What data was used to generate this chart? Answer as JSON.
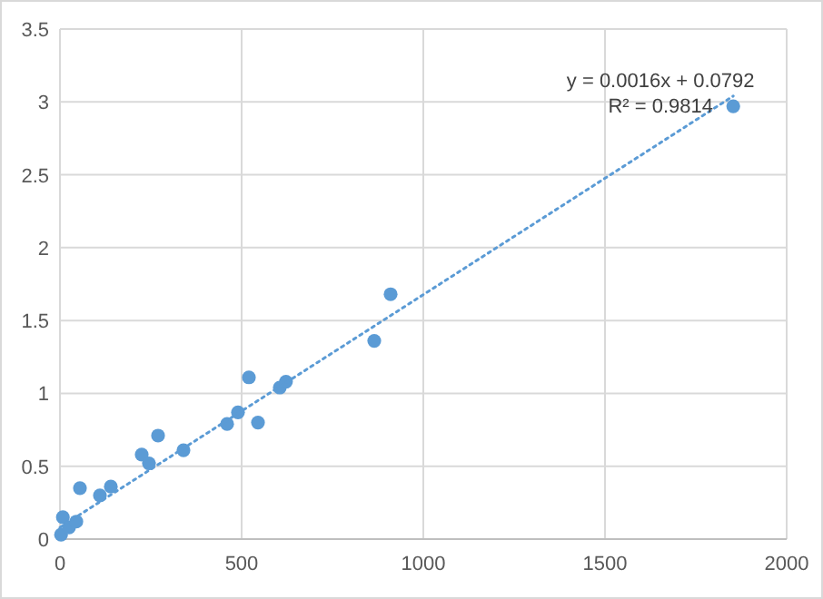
{
  "chart_data": {
    "type": "scatter",
    "xlim": [
      0,
      2000
    ],
    "ylim": [
      0,
      3.5
    ],
    "xticks": [
      0,
      500,
      1000,
      1500,
      2000
    ],
    "yticks": [
      0,
      0.5,
      1,
      1.5,
      2,
      2.5,
      3,
      3.5
    ],
    "grid": true,
    "annotations": [
      "y = 0.0016x + 0.0792",
      "R² = 0.9814"
    ],
    "series": [
      {
        "color": "#5b9bd5",
        "marker": "circle",
        "x": [
          1853,
          910,
          865,
          520,
          490,
          460,
          545,
          605,
          622,
          340,
          270,
          225,
          245,
          140,
          110,
          55,
          3,
          8,
          25,
          45
        ],
        "values": [
          2.97,
          1.68,
          1.36,
          1.11,
          0.87,
          0.79,
          0.8,
          1.04,
          1.08,
          0.61,
          0.71,
          0.58,
          0.52,
          0.36,
          0.3,
          0.35,
          0.03,
          0.15,
          0.08,
          0.12
        ]
      },
      {
        "type": "line",
        "color": "#5b9bd5",
        "line_style": "dotted",
        "x": [
          0,
          1853
        ],
        "values": [
          0.08,
          3.04
        ]
      }
    ]
  }
}
